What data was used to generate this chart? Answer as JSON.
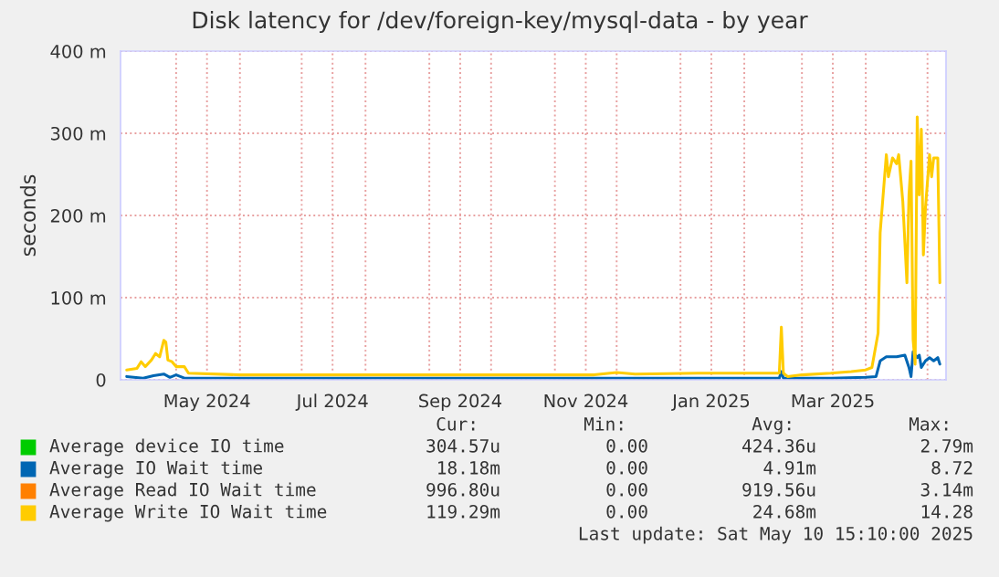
{
  "chart_data": {
    "type": "line",
    "title": "Disk latency for /dev/foreign-key/mysql-data - by year",
    "ylabel": "seconds",
    "xlim": [
      "2024-04-04",
      "2025-05-10"
    ],
    "ylim": [
      0,
      400
    ],
    "yticks": [
      0,
      {
        "value": 100,
        "label": "100 m"
      },
      {
        "value": 200,
        "label": "200 m"
      },
      {
        "value": 300,
        "label": "300 m"
      },
      {
        "value": 400,
        "label": "400 m"
      }
    ],
    "xticks": [
      {
        "value": "2024-05-16",
        "label": "May 2024"
      },
      {
        "value": "2024-07-16",
        "label": "Jul 2024"
      },
      {
        "value": "2024-09-16",
        "label": "Sep 2024"
      },
      {
        "value": "2024-11-16",
        "label": "Nov 2024"
      },
      {
        "value": "2025-01-16",
        "label": "Jan 2025"
      },
      {
        "value": "2025-03-16",
        "label": "Mar 2025"
      },
      {
        "value": "2024-05-01",
        "label": null
      },
      {
        "value": "2024-06-01",
        "label": null
      },
      {
        "value": "2024-07-01",
        "label": null
      },
      {
        "value": "2024-08-01",
        "label": null
      },
      {
        "value": "2024-09-01",
        "label": null
      },
      {
        "value": "2024-10-01",
        "label": null
      },
      {
        "value": "2024-11-01",
        "label": null
      },
      {
        "value": "2024-12-01",
        "label": null
      },
      {
        "value": "2025-01-01",
        "label": null
      },
      {
        "value": "2025-02-01",
        "label": null
      },
      {
        "value": "2025-03-01",
        "label": null
      },
      {
        "value": "2025-04-01",
        "label": null
      },
      {
        "value": "2025-05-01",
        "label": null
      }
    ],
    "grid": true,
    "legend": "bottom",
    "series": [
      {
        "name": "Average device IO time",
        "color": "#00cc00"
      },
      {
        "name": "Average IO Wait time",
        "color": "#0066b3",
        "x": [
          "2024-04-07",
          "2024-04-15",
          "2024-04-20",
          "2024-04-25",
          "2024-04-28",
          "2024-05-01",
          "2024-05-05",
          "2024-06-01",
          "2024-08-01",
          "2024-10-01",
          "2024-12-01",
          "2025-02-01",
          "2025-02-18",
          "2025-02-19",
          "2025-02-20",
          "2025-03-15",
          "2025-04-01",
          "2025-04-06",
          "2025-04-08",
          "2025-04-11",
          "2025-04-16",
          "2025-04-20",
          "2025-04-22",
          "2025-04-23",
          "2025-04-24",
          "2025-04-26",
          "2025-04-27",
          "2025-04-28",
          "2025-04-30",
          "2025-05-02",
          "2025-05-04",
          "2025-05-06",
          "2025-05-07"
        ],
        "values": [
          4,
          2,
          5,
          7,
          3,
          6,
          2,
          2,
          2,
          2,
          2,
          2,
          2,
          10,
          2,
          2,
          3,
          4,
          23,
          28,
          28,
          30,
          15,
          4,
          34,
          27,
          30,
          15,
          23,
          27,
          23,
          27,
          19
        ]
      },
      {
        "name": "Average Read IO Wait time",
        "color": "#ff8000"
      },
      {
        "name": "Average Write IO Wait time",
        "color": "#ffcc00",
        "x": [
          "2024-04-07",
          "2024-04-12",
          "2024-04-14",
          "2024-04-16",
          "2024-04-19",
          "2024-04-21",
          "2024-04-23",
          "2024-04-25",
          "2024-04-26",
          "2024-04-27",
          "2024-04-29",
          "2024-05-01",
          "2024-05-05",
          "2024-05-07",
          "2024-06-01",
          "2024-08-01",
          "2024-10-01",
          "2024-11-20",
          "2024-12-01",
          "2024-12-10",
          "2025-01-10",
          "2025-02-10",
          "2025-02-18",
          "2025-02-19",
          "2025-02-20",
          "2025-02-22",
          "2025-03-01",
          "2025-03-15",
          "2025-03-25",
          "2025-04-01",
          "2025-04-04",
          "2025-04-07",
          "2025-04-08",
          "2025-04-11",
          "2025-04-12",
          "2025-04-14",
          "2025-04-16",
          "2025-04-17",
          "2025-04-19",
          "2025-04-21",
          "2025-04-22",
          "2025-04-23",
          "2025-04-24",
          "2025-04-25",
          "2025-04-26",
          "2025-04-27",
          "2025-04-28",
          "2025-04-29",
          "2025-04-30",
          "2025-05-02",
          "2025-05-03",
          "2025-05-04",
          "2025-05-06",
          "2025-05-07"
        ],
        "values": [
          12,
          14,
          22,
          16,
          24,
          32,
          28,
          48,
          46,
          24,
          22,
          16,
          16,
          8,
          6,
          6,
          6,
          6,
          9,
          7,
          8,
          8,
          8,
          64,
          8,
          4,
          6,
          8,
          10,
          12,
          15,
          57,
          179,
          274,
          247,
          270,
          263,
          274,
          217,
          118,
          225,
          266,
          49,
          19,
          320,
          225,
          305,
          152,
          209,
          274,
          247,
          270,
          270,
          118
        ]
      }
    ],
    "annotations": [
      "Cur:",
      "Min:",
      "Avg:",
      "Max:",
      "304.57u",
      "0.00",
      "424.36u",
      "2.79m",
      "18.18m",
      "0.00",
      "4.91m",
      "8.72",
      "996.80u",
      "0.00",
      "919.56u",
      "3.14m",
      "119.29m",
      "0.00",
      "24.68m",
      "14.28",
      "Last update: Sat May 10 15:10:00 2025"
    ]
  }
}
